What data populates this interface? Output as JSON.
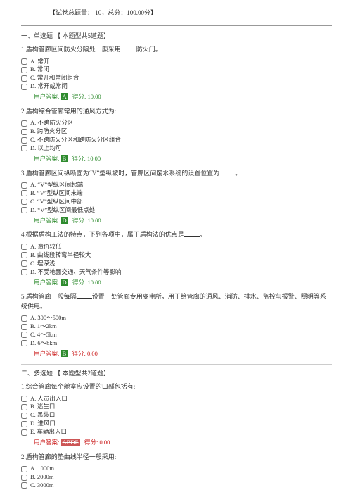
{
  "header": "【试卷总题量：  10，总分：100.00分】",
  "section1": {
    "title": "一、单选题    【 本题型共5道题】"
  },
  "q1": {
    "title_1": "1.盾构管廊区间防火分隔处一般采用",
    "title_2": "防火门。",
    "opts": {
      "a": "A. 常开",
      "b": "B. 常闭",
      "c": "C. 常开和常闭组合",
      "d": "D. 常开或常闭"
    },
    "answer_label": "用户答案:",
    "answer_badge": "A",
    "score_label": "得分:",
    "score": "10.00"
  },
  "q2": {
    "title": "2.盾构综合管廊常用的通风方式为:",
    "opts": {
      "a": "A. 不跨防火分区",
      "b": "B. 跨防火分区",
      "c": "C. 不跨防火分区和跨防火分区组合",
      "d": "D. 以上均可"
    },
    "answer_label": "用户答案:",
    "answer_badge": "B",
    "score_label": "得分:",
    "score": "10.00"
  },
  "q3": {
    "title_1": "3.盾构管廊区间纵断面为“V”型纵坡时，管廊区间废水系统的设置位置为",
    "title_2": "。",
    "opts": {
      "a": "A. “V”型纵区间起端",
      "b": "B. “V”型纵区间末端",
      "c": "C. “V”型纵区间中部",
      "d": "D. “V”型纵区间最低点处"
    },
    "answer_label": "用户答案:",
    "answer_badge": "D",
    "score_label": "得分:",
    "score": "10.00"
  },
  "q4": {
    "title_1": "4.根据盾构工法的特点，下列各项中，属于盾构法的优点是",
    "title_2": "。",
    "opts": {
      "a": "A. 造价较低",
      "b": "B. 曲线段转弯半径较大",
      "c": "C. 埋深浅",
      "d": "D. 不受地面交通、天气条件等影响"
    },
    "answer_label": "用户答案:",
    "answer_badge": "D",
    "score_label": "得分:",
    "score": "10.00"
  },
  "q5": {
    "title_1": "5.盾构管廊一般每隔",
    "title_2": "设置一处管廊专用变电所，用于给管廊的通风、消防、排水、监控与报警、照明等系统供电。",
    "opts": {
      "a": "A. 300～500m",
      "b": "B. 1～2km",
      "c": "C. 4～5km",
      "d": "D. 6～8km"
    },
    "answer_label": "用户答案:",
    "answer_badge": "B",
    "score_label": "得分:",
    "score": "0.00"
  },
  "section2": {
    "title": "二、多选题    【 本题型共2道题】"
  },
  "q6": {
    "title": "1.综合管廊每个舱室应设置的口部包括有:",
    "opts": {
      "a": "A. 人员出入口",
      "b": "B. 逃生口",
      "c": "C. 吊装口",
      "d": "D. 进风口",
      "e": "E. 车辆出入口"
    },
    "answer_label": "用户答案:",
    "answer_badge": "ABDE",
    "score_label": "得分:",
    "score": "0.00"
  },
  "q7": {
    "title": "2.盾构管廊的垫曲线半径一般采用:",
    "opts": {
      "a": "A. 1000m",
      "b": "B. 2000m",
      "c": "C. 3000m"
    }
  }
}
